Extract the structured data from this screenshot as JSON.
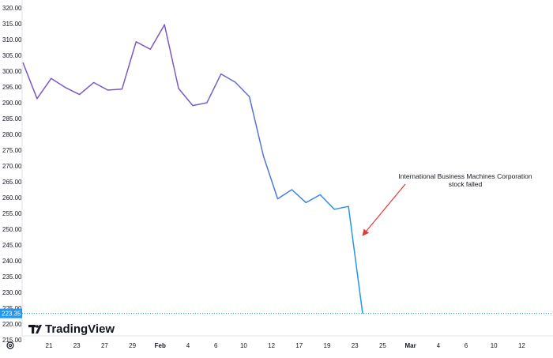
{
  "chart_data": {
    "type": "line",
    "title": "",
    "xlabel": "",
    "ylabel": "",
    "ylim": [
      212.5,
      322.5
    ],
    "y_ticks": [
      215,
      220,
      225,
      230,
      235,
      240,
      245,
      250,
      255,
      260,
      265,
      270,
      275,
      280,
      285,
      290,
      295,
      300,
      305,
      310,
      315,
      320
    ],
    "y_tick_labels": [
      "215.00",
      "220.00",
      "225.00",
      "230.00",
      "235.00",
      "240.00",
      "245.00",
      "250.00",
      "255.00",
      "260.00",
      "265.00",
      "270.00",
      "275.00",
      "280.00",
      "285.00",
      "290.00",
      "295.00",
      "300.00",
      "305.00",
      "310.00",
      "315.00",
      "320.00"
    ],
    "x_tick_labels": [
      "21",
      "23",
      "27",
      "29",
      "Feb",
      "4",
      "6",
      "10",
      "12",
      "17",
      "19",
      "23",
      "25",
      "Mar",
      "4",
      "6",
      "10",
      "12"
    ],
    "bold_x_labels": [
      "Feb",
      "Mar"
    ],
    "series": [
      {
        "values": [
          302.7,
          291.3,
          297.7,
          294.8,
          292.6,
          296.4,
          294.0,
          294.3,
          309.3,
          306.9,
          314.7,
          294.5,
          289.1,
          290.0,
          299.1,
          296.5,
          291.9,
          273.0,
          259.6,
          262.5,
          258.4,
          260.9,
          256.3,
          257.2,
          223.35
        ],
        "color_start": "#7e57c2",
        "color_end": "#2196f3"
      }
    ],
    "last_value_label": "223.35",
    "annotation": {
      "line1": "International Business Machines Corporation",
      "line2": "stock falled",
      "arrow_color": "#e53935"
    },
    "grid": false
  },
  "footer": {
    "brand": "TradingView",
    "settings_icon": "gear-icon"
  }
}
